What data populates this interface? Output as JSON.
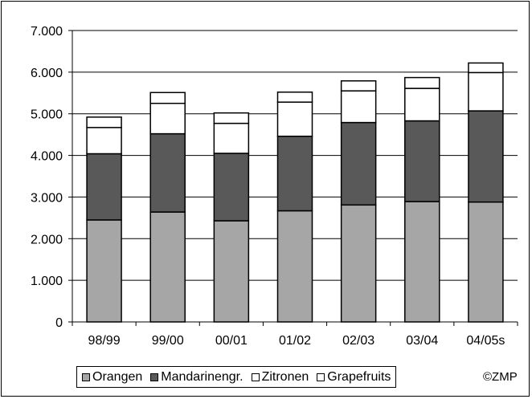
{
  "chart_data": {
    "type": "bar",
    "stacked": true,
    "categories": [
      "98/99",
      "99/00",
      "00/01",
      "01/02",
      "02/03",
      "03/04",
      "04/05s"
    ],
    "series": [
      {
        "name": "Orangen",
        "color": "#a6a6a6",
        "values": [
          2450,
          2640,
          2430,
          2670,
          2810,
          2890,
          2880
        ]
      },
      {
        "name": "Mandarinengr.",
        "color": "#595959",
        "values": [
          1590,
          1880,
          1620,
          1790,
          1980,
          1940,
          2190
        ]
      },
      {
        "name": "Zitronen",
        "color": "#ffffff",
        "values": [
          630,
          730,
          720,
          820,
          760,
          780,
          920
        ]
      },
      {
        "name": "Grapefruits",
        "color": "#ffffff",
        "values": [
          250,
          260,
          250,
          240,
          240,
          260,
          230
        ]
      }
    ],
    "y_tick_labels": [
      "0",
      "1.000",
      "2.000",
      "3.000",
      "4.000",
      "5.000",
      "6.000",
      "7.000"
    ],
    "ylim": [
      0,
      7000
    ],
    "grid": true,
    "legend_position": "bottom",
    "title": "",
    "xlabel": "",
    "ylabel": ""
  },
  "credit": "©ZMP"
}
